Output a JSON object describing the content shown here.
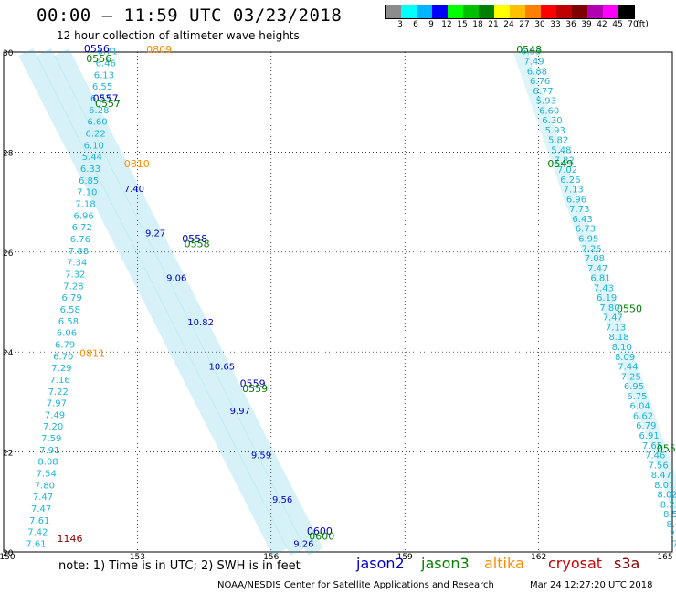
{
  "header": {
    "title": "00:00 – 11:59 UTC 03/23/2018",
    "subtitle": "12 hour collection of altimeter wave heights"
  },
  "legend": {
    "colors": [
      "#8c8c8c",
      "#00ffff",
      "#00b4ff",
      "#0000ff",
      "#00ff00",
      "#00c000",
      "#008000",
      "#ffff00",
      "#ffc000",
      "#ff8000",
      "#ff0000",
      "#c00000",
      "#800000",
      "#b000b0",
      "#ff00ff",
      "#000000"
    ],
    "labels": [
      "3",
      "6",
      "9",
      "12",
      "15",
      "18",
      "21",
      "24",
      "27",
      "30",
      "33",
      "36",
      "39",
      "42",
      "45",
      "70",
      "(ft)"
    ]
  },
  "axes": {
    "x_ticks": [
      "150",
      "153",
      "156",
      "159",
      "162",
      "165"
    ],
    "y_ticks": [
      "20",
      "22",
      "24",
      "26",
      "28",
      "30"
    ],
    "x_range": [
      150,
      165
    ],
    "y_range": [
      20,
      30
    ]
  },
  "colors": {
    "jason2": "#0000cc",
    "jason3": "#008000",
    "altika": "#ff8c00",
    "cryosat": "#cc0000",
    "s3a": "#8b0000",
    "swh": "#1cb5d8"
  },
  "track_times": [
    {
      "label": "0556",
      "lon": 151.8,
      "lat": 30.0,
      "sat": "jason2"
    },
    {
      "label": "0556",
      "lon": 151.85,
      "lat": 29.8,
      "sat": "jason3"
    },
    {
      "label": "0809",
      "lon": 153.2,
      "lat": 29.98,
      "sat": "altika"
    },
    {
      "label": "0557",
      "lon": 152.0,
      "lat": 29.0,
      "sat": "jason2"
    },
    {
      "label": "0557",
      "lon": 152.05,
      "lat": 28.9,
      "sat": "jason3"
    },
    {
      "label": "0810",
      "lon": 152.7,
      "lat": 27.7,
      "sat": "altika"
    },
    {
      "label": "0558",
      "lon": 154.0,
      "lat": 26.2,
      "sat": "jason2"
    },
    {
      "label": "0558",
      "lon": 154.05,
      "lat": 26.1,
      "sat": "jason3"
    },
    {
      "label": "0811",
      "lon": 151.7,
      "lat": 23.9,
      "sat": "altika"
    },
    {
      "label": "0559",
      "lon": 155.3,
      "lat": 23.3,
      "sat": "jason2"
    },
    {
      "label": "0559",
      "lon": 155.35,
      "lat": 23.2,
      "sat": "jason3"
    },
    {
      "label": "0600",
      "lon": 156.8,
      "lat": 20.35,
      "sat": "jason2"
    },
    {
      "label": "0600",
      "lon": 156.85,
      "lat": 20.25,
      "sat": "jason3"
    },
    {
      "label": "1146",
      "lon": 151.2,
      "lat": 20.2,
      "sat": "s3a"
    },
    {
      "label": "0548",
      "lon": 161.5,
      "lat": 29.98,
      "sat": "jason3"
    },
    {
      "label": "0549",
      "lon": 162.2,
      "lat": 27.7,
      "sat": "jason3"
    },
    {
      "label": "0550",
      "lon": 163.75,
      "lat": 24.8,
      "sat": "jason3"
    },
    {
      "label": "055",
      "lon": 164.65,
      "lat": 22.0,
      "sat": "jason3"
    }
  ],
  "swh_east": [
    "6.53",
    "7.49",
    "6.88",
    "6.76",
    "6.77",
    "5.93",
    "6.60",
    "6.30",
    "5.93",
    "5.82",
    "5.48",
    "7.82",
    "7.02",
    "6.26",
    "7.13",
    "6.96",
    "7.73",
    "6.43",
    "6.73",
    "6.95",
    "7.25",
    "7.08",
    "7.47",
    "6.81",
    "7.43",
    "6.19",
    "7.80",
    "7.47",
    "7.13",
    "8.18",
    "8.10",
    "8.09",
    "7.44",
    "7.25",
    "6.95",
    "6.75",
    "6.04",
    "6.62",
    "6.79",
    "6.91",
    "7.65",
    "7.46",
    "7.56",
    "8.47",
    "8.01",
    "8.02",
    "8.23",
    "8.52",
    "8.64",
    "7.66",
    "7.28"
  ],
  "swh_west": [
    "6.71",
    "6.46",
    "6.13",
    "6.55",
    "6.23",
    "6.28",
    "6.60",
    "6.22",
    "6.10",
    "5.44",
    "6.33",
    "6.85",
    "7.10",
    "7.18",
    "6.96",
    "6.72",
    "6.76",
    "7.88",
    "7.34",
    "7.32",
    "7.28",
    "6.79",
    "6.58",
    "6.58",
    "6.06",
    "6.79",
    "6.70",
    "7.29",
    "7.16",
    "7.22",
    "7.97",
    "7.49",
    "7.20",
    "7.59",
    "7.91",
    "8.08",
    "7.54",
    "7.80",
    "7.47",
    "7.47",
    "7.61",
    "7.42",
    "7.61"
  ],
  "swh_jason2": [
    "7.40",
    "9.27",
    "9.06",
    "10.82",
    "10.65",
    "9.97",
    "9.59",
    "9.56",
    "9.26"
  ],
  "note": "note: 1) Time is in UTC; 2) SWH is in feet",
  "satellites": [
    "jason2",
    "jason3",
    "altika",
    "cryosat",
    "s3a"
  ],
  "credit": "NOAA/NESDIS Center for Satellite Applications and Research",
  "timestamp": "Mar 24 12:27:20 UTC 2018"
}
